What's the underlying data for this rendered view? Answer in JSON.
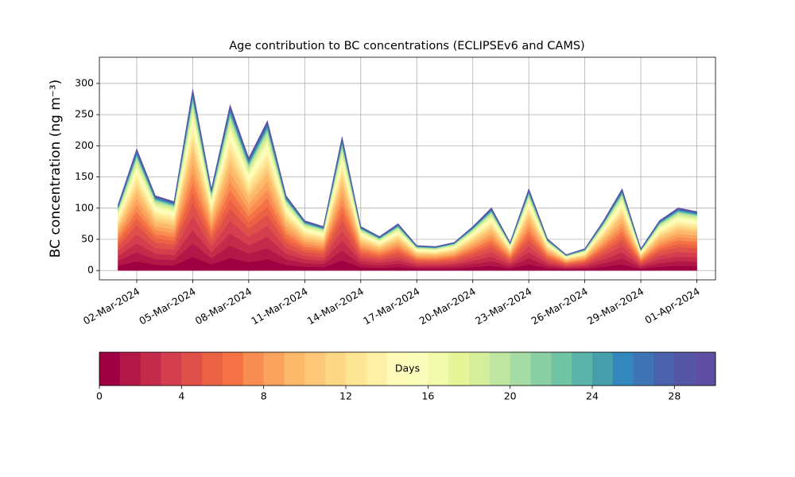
{
  "chart_data": {
    "type": "stacked_area",
    "title": "Age contribution to BC concentrations (ECLIPSEv6 and CAMS)",
    "y_label": "BC concentration (ng m⁻³)",
    "x": [
      "2024-03-01",
      "2024-03-02",
      "2024-03-03",
      "2024-03-04",
      "2024-03-05",
      "2024-03-06",
      "2024-03-07",
      "2024-03-08",
      "2024-03-09",
      "2024-03-10",
      "2024-03-11",
      "2024-03-12",
      "2024-03-13",
      "2024-03-14",
      "2024-03-15",
      "2024-03-16",
      "2024-03-17",
      "2024-03-18",
      "2024-03-19",
      "2024-03-20",
      "2024-03-21",
      "2024-03-22",
      "2024-03-23",
      "2024-03-24",
      "2024-03-25",
      "2024-03-26",
      "2024-03-27",
      "2024-03-28",
      "2024-03-29",
      "2024-03-30",
      "2024-03-31",
      "2024-04-01"
    ],
    "xlim": [
      "2024-02-29",
      "2024-04-02"
    ],
    "xticks": [
      {
        "value": "2024-03-02",
        "label": "02-Mar-2024"
      },
      {
        "value": "2024-03-05",
        "label": "05-Mar-2024"
      },
      {
        "value": "2024-03-08",
        "label": "08-Mar-2024"
      },
      {
        "value": "2024-03-11",
        "label": "11-Mar-2024"
      },
      {
        "value": "2024-03-14",
        "label": "14-Mar-2024"
      },
      {
        "value": "2024-03-17",
        "label": "17-Mar-2024"
      },
      {
        "value": "2024-03-20",
        "label": "20-Mar-2024"
      },
      {
        "value": "2024-03-23",
        "label": "23-Mar-2024"
      },
      {
        "value": "2024-03-26",
        "label": "26-Mar-2024"
      },
      {
        "value": "2024-03-29",
        "label": "29-Mar-2024"
      },
      {
        "value": "2024-04-01",
        "label": "01-Apr-2024"
      }
    ],
    "ylim": [
      -15,
      342
    ],
    "yticks": [
      0,
      50,
      100,
      150,
      200,
      250,
      300
    ],
    "grid": true,
    "series": [
      {
        "color": "#9e0142",
        "values": [
          7.9,
          14.6,
          9,
          8.3,
          21.8,
          9.8,
          19.9,
          13.5,
          18,
          9,
          6,
          5.3,
          16.1,
          5.3,
          4.1,
          5.6,
          3,
          2.9,
          3.4,
          5.3,
          7.5,
          3.4,
          9.8,
          3.8,
          1.9,
          2.6,
          6,
          9.8,
          2.6,
          6,
          7.5,
          7.1
        ]
      },
      {
        "color": "#b11747",
        "values": [
          7.9,
          14.6,
          9,
          8.3,
          21.8,
          9.8,
          19.9,
          13.5,
          18,
          9,
          6,
          5.3,
          16.1,
          5.3,
          4.1,
          5.6,
          3,
          2.9,
          3.4,
          5.3,
          7.5,
          3.4,
          9.8,
          3.8,
          1.9,
          2.6,
          6,
          9.8,
          2.6,
          6,
          7.5,
          7.1
        ]
      },
      {
        "color": "#c52a4b",
        "values": [
          7.9,
          14.6,
          9,
          8.3,
          21.8,
          9.8,
          19.9,
          13.5,
          18,
          9,
          6,
          5.3,
          16.1,
          5.3,
          4.1,
          5.6,
          3,
          2.9,
          3.4,
          5.3,
          7.5,
          3.4,
          9.8,
          3.8,
          1.9,
          2.6,
          6,
          9.8,
          2.6,
          6,
          7.5,
          7.1
        ]
      },
      {
        "color": "#d53e4f",
        "values": [
          7.9,
          14.6,
          9,
          8.3,
          21.8,
          9.8,
          19.9,
          13.5,
          18,
          9,
          6,
          5.3,
          16.1,
          5.3,
          4.1,
          5.6,
          3,
          2.9,
          3.4,
          5.3,
          7.5,
          3.4,
          9.8,
          3.8,
          1.9,
          2.6,
          6,
          9.8,
          2.6,
          6,
          7.5,
          7.1
        ]
      },
      {
        "color": "#e0504a",
        "values": [
          7.9,
          14.6,
          9,
          8.3,
          21.8,
          9.8,
          19.9,
          13.5,
          18,
          9,
          6,
          5.3,
          16.1,
          5.3,
          4.1,
          5.6,
          3,
          2.9,
          3.4,
          5.3,
          7.5,
          3.4,
          9.8,
          3.8,
          1.9,
          2.6,
          6,
          9.8,
          2.6,
          6,
          7.5,
          7.1
        ]
      },
      {
        "color": "#ea6144",
        "values": [
          5.8,
          10.7,
          6.6,
          6.1,
          16,
          7.2,
          14.6,
          9.9,
          13.2,
          6.6,
          4.4,
          3.9,
          11.8,
          3.9,
          3,
          4.1,
          2.2,
          2.1,
          2.5,
          3.9,
          5.5,
          2.5,
          7.2,
          2.8,
          1.4,
          1.9,
          4.4,
          7.2,
          1.9,
          4.4,
          5.5,
          5.2
        ]
      },
      {
        "color": "#f47245",
        "values": [
          5.8,
          10.7,
          6.6,
          6.1,
          16,
          7.2,
          14.6,
          9.9,
          13.2,
          6.6,
          4.4,
          3.9,
          11.8,
          3.9,
          3,
          4.1,
          2.2,
          2.1,
          2.5,
          3.9,
          5.5,
          2.5,
          7.2,
          2.8,
          1.4,
          1.9,
          4.4,
          7.2,
          1.9,
          4.4,
          5.5,
          5.2
        ]
      },
      {
        "color": "#f88c51",
        "values": [
          5.8,
          10.7,
          6.6,
          6.1,
          16,
          7.2,
          14.6,
          9.9,
          13.2,
          6.6,
          4.4,
          3.9,
          11.8,
          3.9,
          3,
          4.1,
          2.2,
          2.1,
          2.5,
          3.9,
          5.5,
          2.5,
          7.2,
          2.8,
          1.4,
          1.9,
          4.4,
          7.2,
          1.9,
          4.4,
          5.5,
          5.2
        ]
      },
      {
        "color": "#fba35d",
        "values": [
          5.8,
          10.7,
          6.6,
          6.1,
          16,
          7.2,
          14.6,
          9.9,
          13.2,
          6.6,
          4.4,
          3.9,
          11.8,
          3.9,
          3,
          4.1,
          2.2,
          2.1,
          2.5,
          3.9,
          5.5,
          2.5,
          7.2,
          2.8,
          1.4,
          1.9,
          4.4,
          7.2,
          1.9,
          4.4,
          5.5,
          5.2
        ]
      },
      {
        "color": "#fdb96a",
        "values": [
          5.8,
          10.7,
          6.6,
          6.1,
          16,
          7.2,
          14.6,
          9.9,
          13.2,
          6.6,
          4.4,
          3.9,
          11.8,
          3.9,
          3,
          4.1,
          2.2,
          2.1,
          2.5,
          3.9,
          5.5,
          2.5,
          7.2,
          2.8,
          1.4,
          1.9,
          4.4,
          7.2,
          1.9,
          4.4,
          5.5,
          5.2
        ]
      },
      {
        "color": "#fdc877",
        "values": [
          3.7,
          6.8,
          4.2,
          3.9,
          10.2,
          4.6,
          9.3,
          6.3,
          8.4,
          4.2,
          2.8,
          2.5,
          7.5,
          2.5,
          1.9,
          2.6,
          1.4,
          1.3,
          1.6,
          2.5,
          3.5,
          1.6,
          4.6,
          1.8,
          0.9,
          1.2,
          2.8,
          4.6,
          1.2,
          2.8,
          3.5,
          3.3
        ]
      },
      {
        "color": "#fed785",
        "values": [
          3.7,
          6.8,
          4.2,
          3.9,
          10.2,
          4.6,
          9.3,
          6.3,
          8.4,
          4.2,
          2.8,
          2.5,
          7.5,
          2.5,
          1.9,
          2.6,
          1.4,
          1.3,
          1.6,
          2.5,
          3.5,
          1.6,
          4.6,
          1.8,
          0.9,
          1.2,
          2.8,
          4.6,
          1.2,
          2.8,
          3.5,
          3.3
        ]
      },
      {
        "color": "#fee593",
        "values": [
          3.7,
          6.8,
          4.2,
          3.9,
          10.2,
          4.6,
          9.3,
          6.3,
          8.4,
          4.2,
          2.8,
          2.5,
          7.5,
          2.5,
          1.9,
          2.6,
          1.4,
          1.3,
          1.6,
          2.5,
          3.5,
          1.6,
          4.6,
          1.8,
          0.9,
          1.2,
          2.8,
          4.6,
          1.2,
          2.8,
          3.5,
          3.3
        ]
      },
      {
        "color": "#fff0a6",
        "values": [
          3.7,
          6.8,
          4.2,
          3.9,
          10.2,
          4.6,
          9.3,
          6.3,
          8.4,
          4.2,
          2.8,
          2.5,
          7.5,
          2.5,
          1.9,
          2.6,
          1.4,
          1.3,
          1.6,
          2.5,
          3.5,
          1.6,
          4.6,
          1.8,
          0.9,
          1.2,
          2.8,
          4.6,
          1.2,
          2.8,
          3.5,
          3.3
        ]
      },
      {
        "color": "#fffbb8",
        "values": [
          3.7,
          6.8,
          4.2,
          3.9,
          10.2,
          4.6,
          9.3,
          6.3,
          8.4,
          4.2,
          2.8,
          2.5,
          7.5,
          2.5,
          1.9,
          2.6,
          1.4,
          1.3,
          1.6,
          2.5,
          3.5,
          1.6,
          4.6,
          1.8,
          0.9,
          1.2,
          2.8,
          4.6,
          1.2,
          2.8,
          3.5,
          3.3
        ]
      },
      {
        "color": "#fbfdba",
        "values": [
          2.1,
          3.9,
          2.4,
          2.2,
          5.8,
          2.6,
          5.3,
          3.6,
          4.8,
          2.4,
          1.6,
          1.4,
          4.3,
          1.4,
          1.1,
          1.5,
          0.8,
          0.8,
          0.9,
          1.4,
          2,
          0.9,
          2.6,
          1,
          0.5,
          0.7,
          1.6,
          2.6,
          0.7,
          1.6,
          2,
          1.9
        ]
      },
      {
        "color": "#f2faab",
        "values": [
          2.1,
          3.9,
          2.4,
          2.2,
          5.8,
          2.6,
          5.3,
          3.6,
          4.8,
          2.4,
          1.6,
          1.4,
          4.3,
          1.4,
          1.1,
          1.5,
          0.8,
          0.8,
          0.9,
          1.4,
          2,
          0.9,
          2.6,
          1,
          0.5,
          0.7,
          1.6,
          2.6,
          0.7,
          1.6,
          2,
          1.9
        ]
      },
      {
        "color": "#e6f598",
        "values": [
          2.1,
          3.9,
          2.4,
          2.2,
          5.8,
          2.6,
          5.3,
          3.6,
          4.8,
          2.4,
          1.6,
          1.4,
          4.3,
          1.4,
          1.1,
          1.5,
          0.8,
          0.8,
          0.9,
          1.4,
          2,
          0.9,
          2.6,
          1,
          0.5,
          0.7,
          1.6,
          2.6,
          0.7,
          1.6,
          2,
          1.9
        ]
      },
      {
        "color": "#d5ee9b",
        "values": [
          2.1,
          3.9,
          2.4,
          2.2,
          5.8,
          2.6,
          5.3,
          3.6,
          4.8,
          2.4,
          1.6,
          1.4,
          4.3,
          1.4,
          1.1,
          1.5,
          0.8,
          0.8,
          0.9,
          1.4,
          2,
          0.9,
          2.6,
          1,
          0.5,
          0.7,
          1.6,
          2.6,
          0.7,
          1.6,
          2,
          1.9
        ]
      },
      {
        "color": "#bfe5a0",
        "values": [
          2.1,
          3.9,
          2.4,
          2.2,
          5.8,
          2.6,
          5.3,
          3.6,
          4.8,
          2.4,
          1.6,
          1.4,
          4.3,
          1.4,
          1.1,
          1.5,
          0.8,
          0.8,
          0.9,
          1.4,
          2,
          0.9,
          2.6,
          1,
          0.5,
          0.7,
          1.6,
          2.6,
          0.7,
          1.6,
          2,
          1.9
        ]
      },
      {
        "color": "#a5dba4",
        "values": [
          0.8,
          1.5,
          0.9,
          0.8,
          2.2,
          1,
          2,
          1.4,
          1.8,
          0.9,
          0.6,
          0.5,
          1.6,
          0.5,
          0.4,
          0.6,
          0.3,
          0.3,
          0.3,
          0.5,
          0.8,
          0.3,
          1,
          0.4,
          0.2,
          0.3,
          0.6,
          1,
          0.3,
          0.6,
          0.8,
          0.7
        ]
      },
      {
        "color": "#8acfa4",
        "values": [
          0.8,
          1.5,
          0.9,
          0.8,
          2.2,
          1,
          2,
          1.4,
          1.8,
          0.9,
          0.6,
          0.5,
          1.6,
          0.5,
          0.4,
          0.6,
          0.3,
          0.3,
          0.3,
          0.5,
          0.8,
          0.3,
          1,
          0.4,
          0.2,
          0.3,
          0.6,
          1,
          0.3,
          0.6,
          0.8,
          0.7
        ]
      },
      {
        "color": "#70c4a4",
        "values": [
          0.8,
          1.5,
          0.9,
          0.8,
          2.2,
          1,
          2,
          1.4,
          1.8,
          0.9,
          0.6,
          0.5,
          1.6,
          0.5,
          0.4,
          0.6,
          0.3,
          0.3,
          0.3,
          0.5,
          0.8,
          0.3,
          1,
          0.4,
          0.2,
          0.3,
          0.6,
          1,
          0.3,
          0.6,
          0.8,
          0.7
        ]
      },
      {
        "color": "#5bb3a9",
        "values": [
          0.8,
          1.5,
          0.9,
          0.8,
          2.2,
          1,
          2,
          1.4,
          1.8,
          0.9,
          0.6,
          0.5,
          1.6,
          0.5,
          0.4,
          0.6,
          0.3,
          0.3,
          0.3,
          0.5,
          0.8,
          0.3,
          1,
          0.4,
          0.2,
          0.3,
          0.6,
          1,
          0.3,
          0.6,
          0.8,
          0.7
        ]
      },
      {
        "color": "#479ead",
        "values": [
          0.8,
          1.5,
          0.9,
          0.8,
          2.2,
          1,
          2,
          1.4,
          1.8,
          0.9,
          0.6,
          0.5,
          1.6,
          0.5,
          0.4,
          0.6,
          0.3,
          0.3,
          0.3,
          0.5,
          0.8,
          0.3,
          1,
          0.4,
          0.2,
          0.3,
          0.6,
          1,
          0.3,
          0.6,
          0.8,
          0.7
        ]
      },
      {
        "color": "#3288bd",
        "values": [
          0.8,
          1.5,
          0.9,
          0.8,
          2.2,
          1,
          2,
          1.4,
          1.8,
          0.9,
          0.6,
          0.5,
          1.6,
          0.5,
          0.4,
          0.6,
          0.3,
          0.3,
          0.3,
          0.5,
          0.8,
          0.3,
          1,
          0.4,
          0.2,
          0.3,
          0.6,
          1,
          0.3,
          0.6,
          0.8,
          0.7
        ]
      },
      {
        "color": "#3f75b4",
        "values": [
          0.8,
          1.5,
          0.9,
          0.8,
          2.2,
          1,
          2,
          1.4,
          1.8,
          0.9,
          0.6,
          0.5,
          1.6,
          0.5,
          0.4,
          0.6,
          0.3,
          0.3,
          0.3,
          0.5,
          0.8,
          0.3,
          1,
          0.4,
          0.2,
          0.3,
          0.6,
          1,
          0.3,
          0.6,
          0.8,
          0.7
        ]
      },
      {
        "color": "#4a62ab",
        "values": [
          0.8,
          1.5,
          0.9,
          0.8,
          2.2,
          1,
          2,
          1.4,
          1.8,
          0.9,
          0.6,
          0.5,
          1.6,
          0.5,
          0.4,
          0.6,
          0.3,
          0.3,
          0.3,
          0.5,
          0.8,
          0.3,
          1,
          0.4,
          0.2,
          0.3,
          0.6,
          1,
          0.3,
          0.6,
          0.8,
          0.7
        ]
      },
      {
        "color": "#5557a5",
        "values": [
          0.8,
          1.5,
          0.9,
          0.8,
          2.2,
          1,
          2,
          1.4,
          1.8,
          0.9,
          0.6,
          0.5,
          1.6,
          0.5,
          0.4,
          0.6,
          0.3,
          0.3,
          0.3,
          0.5,
          0.8,
          0.3,
          1,
          0.4,
          0.2,
          0.3,
          0.6,
          1,
          0.3,
          0.6,
          0.8,
          0.7
        ]
      },
      {
        "color": "#5e4fa2",
        "values": [
          0.8,
          1.5,
          0.9,
          0.8,
          2.2,
          1,
          2,
          1.4,
          1.8,
          0.9,
          0.6,
          0.5,
          1.6,
          0.5,
          0.4,
          0.6,
          0.3,
          0.3,
          0.3,
          0.5,
          0.8,
          0.3,
          1,
          0.4,
          0.2,
          0.3,
          0.6,
          1,
          0.3,
          0.6,
          0.8,
          0.7
        ]
      }
    ],
    "colorbar": {
      "label": "Days",
      "lim": [
        0,
        30
      ],
      "ticks": [
        0,
        4,
        8,
        12,
        16,
        20,
        24,
        28
      ]
    }
  }
}
